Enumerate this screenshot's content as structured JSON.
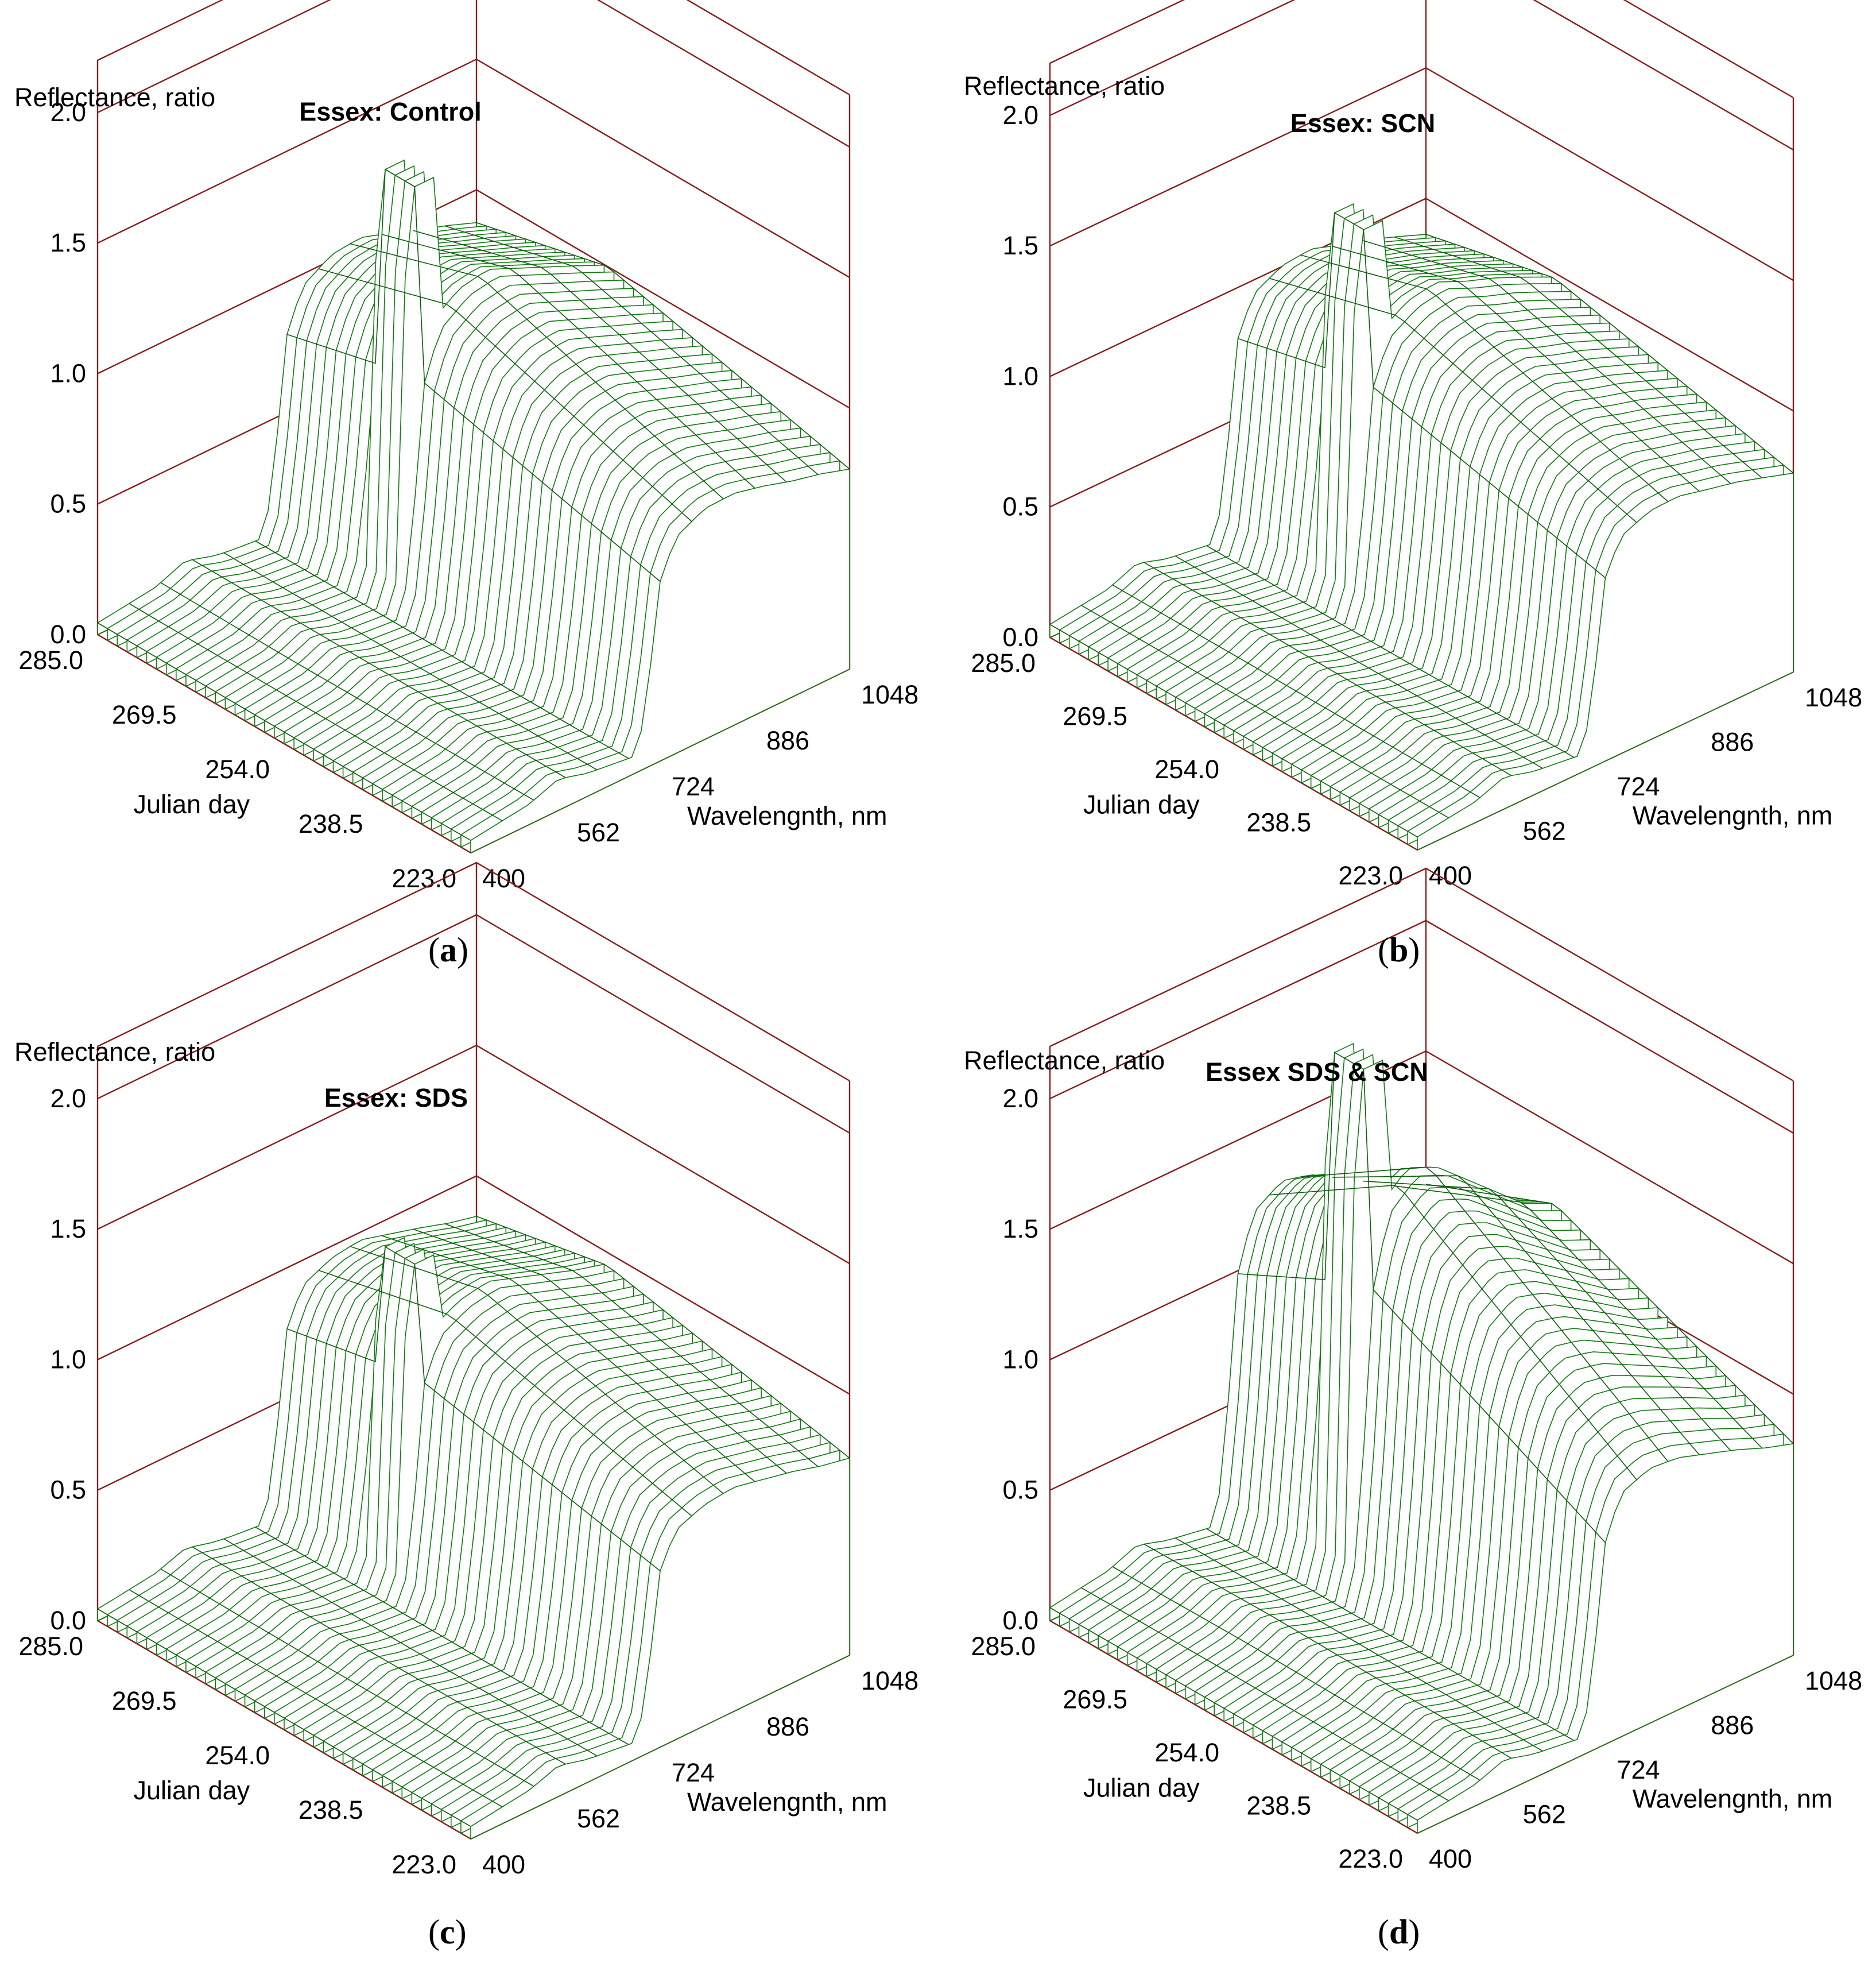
{
  "figure": {
    "panel_captions": [
      {
        "open": "(",
        "letter": "a",
        "close": ")"
      },
      {
        "open": "(",
        "letter": "b",
        "close": ")"
      },
      {
        "open": "(",
        "letter": "c",
        "close": ")"
      },
      {
        "open": "(",
        "letter": "d",
        "close": ")"
      }
    ]
  },
  "colors": {
    "surface": "#117a11",
    "surface_dark": "#0b5e0b",
    "axes": "#8b1a1a",
    "tip": "#d2691e"
  },
  "chart_data": [
    {
      "type": "surface3d",
      "title": "Essex: Control",
      "zlabel": "Reflectance, ratio",
      "ylabel": "Julian day",
      "xlabel": "Wavelengnth, nm",
      "z_ticks": [
        "0.0",
        "0.5",
        "1.0",
        "1.5",
        "2.0"
      ],
      "z_tick_values": [
        0.0,
        0.5,
        1.0,
        1.5,
        2.0
      ],
      "zlim": [
        0,
        2.2
      ],
      "day_ticks": [
        "285.0",
        "269.5",
        "254.0",
        "238.5",
        "223.0"
      ],
      "day_tick_values": [
        285.0,
        269.5,
        254.0,
        238.5,
        223.0
      ],
      "daylim": [
        223.0,
        285.0
      ],
      "wavelength_ticks": [
        "400",
        "562",
        "724",
        "886",
        "1048"
      ],
      "wavelength_tick_values": [
        400,
        562,
        724,
        886,
        1048
      ],
      "wavelengthlim": [
        400,
        1048
      ],
      "surface": {
        "wavelength_profile_nm": [
          400,
          500,
          550,
          600,
          680,
          700,
          720,
          750,
          800,
          850,
          900,
          950,
          1000,
          1048
        ],
        "early_day_reflectance": [
          0.04,
          0.07,
          0.12,
          0.08,
          0.05,
          0.25,
          0.9,
          1.1,
          1.18,
          1.2,
          1.15,
          1.1,
          1.05,
          1.0
        ],
        "late_day_reflectance": [
          0.05,
          0.08,
          0.12,
          0.09,
          0.07,
          0.2,
          0.6,
          0.75,
          0.8,
          0.8,
          0.78,
          0.75,
          0.73,
          0.7
        ],
        "peak_reflectance": 1.65
      }
    },
    {
      "type": "surface3d",
      "title": "Essex: SCN",
      "zlabel": "Reflectance, ratio",
      "ylabel": "Julian day",
      "xlabel": "Wavelengnth, nm",
      "z_ticks": [
        "0.0",
        "0.5",
        "1.0",
        "1.5",
        "2.0"
      ],
      "z_tick_values": [
        0.0,
        0.5,
        1.0,
        1.5,
        2.0
      ],
      "zlim": [
        0,
        2.2
      ],
      "day_ticks": [
        "285.0",
        "269.5",
        "254.0",
        "238.5",
        "223.0"
      ],
      "day_tick_values": [
        285.0,
        269.5,
        254.0,
        238.5,
        223.0
      ],
      "daylim": [
        223.0,
        285.0
      ],
      "wavelength_ticks": [
        "400",
        "562",
        "724",
        "886",
        "1048"
      ],
      "wavelength_tick_values": [
        400,
        562,
        724,
        886,
        1048
      ],
      "wavelengthlim": [
        400,
        1048
      ],
      "surface": {
        "wavelength_profile_nm": [
          400,
          500,
          550,
          600,
          680,
          700,
          720,
          750,
          800,
          850,
          900,
          950,
          1000,
          1048
        ],
        "early_day_reflectance": [
          0.05,
          0.08,
          0.13,
          0.09,
          0.06,
          0.25,
          0.9,
          1.08,
          1.15,
          1.17,
          1.12,
          1.08,
          1.03,
          0.98
        ],
        "late_day_reflectance": [
          0.05,
          0.08,
          0.12,
          0.09,
          0.07,
          0.2,
          0.62,
          0.76,
          0.8,
          0.8,
          0.78,
          0.76,
          0.73,
          0.7
        ],
        "peak_reflectance": 1.5
      }
    },
    {
      "type": "surface3d",
      "title": "Essex: SDS",
      "zlabel": "Reflectance, ratio",
      "ylabel": "Julian day",
      "xlabel": "Wavelengnth, nm",
      "z_ticks": [
        "0.0",
        "0.5",
        "1.0",
        "1.5",
        "2.0"
      ],
      "z_tick_values": [
        0.0,
        0.5,
        1.0,
        1.5,
        2.0
      ],
      "zlim": [
        0,
        2.2
      ],
      "day_ticks": [
        "285.0",
        "269.5",
        "254.0",
        "238.5",
        "223.0"
      ],
      "day_tick_values": [
        285.0,
        269.5,
        254.0,
        238.5,
        223.0
      ],
      "daylim": [
        223.0,
        285.0
      ],
      "wavelength_ticks": [
        "400",
        "562",
        "724",
        "886",
        "1048"
      ],
      "wavelength_tick_values": [
        400,
        562,
        724,
        886,
        1048
      ],
      "wavelengthlim": [
        400,
        1048
      ],
      "surface": {
        "wavelength_profile_nm": [
          400,
          500,
          550,
          600,
          680,
          700,
          720,
          750,
          800,
          850,
          900,
          950,
          1000,
          1048
        ],
        "early_day_reflectance": [
          0.04,
          0.07,
          0.11,
          0.08,
          0.05,
          0.22,
          0.85,
          1.02,
          1.08,
          1.1,
          1.06,
          1.02,
          0.98,
          0.95
        ],
        "late_day_reflectance": [
          0.05,
          0.08,
          0.12,
          0.09,
          0.07,
          0.2,
          0.6,
          0.74,
          0.78,
          0.79,
          0.77,
          0.75,
          0.72,
          0.7
        ],
        "peak_reflectance": 1.3
      }
    },
    {
      "type": "surface3d",
      "title": "Essex SDS & SCN",
      "zlabel": "Reflectance, ratio",
      "ylabel": "Julian day",
      "xlabel": "Wavelengnth, nm",
      "z_ticks": [
        "0.0",
        "0.5",
        "1.0",
        "1.5",
        "2.0"
      ],
      "z_tick_values": [
        0.0,
        0.5,
        1.0,
        1.5,
        2.0
      ],
      "zlim": [
        0,
        2.2
      ],
      "day_ticks": [
        "285.0",
        "269.5",
        "254.0",
        "238.5",
        "223.0"
      ],
      "day_tick_values": [
        285.0,
        269.5,
        254.0,
        238.5,
        223.0
      ],
      "daylim": [
        223.0,
        285.0
      ],
      "wavelength_ticks": [
        "400",
        "562",
        "724",
        "886",
        "1048"
      ],
      "wavelength_tick_values": [
        400,
        562,
        724,
        886,
        1048
      ],
      "wavelengthlim": [
        400,
        1048
      ],
      "surface": {
        "wavelength_profile_nm": [
          400,
          500,
          550,
          600,
          680,
          700,
          720,
          750,
          800,
          850,
          900,
          950,
          1000,
          1048
        ],
        "early_day_reflectance": [
          0.05,
          0.09,
          0.14,
          0.1,
          0.06,
          0.3,
          1.2,
          1.5,
          1.6,
          1.55,
          1.45,
          1.35,
          1.25,
          1.2
        ],
        "late_day_reflectance": [
          0.05,
          0.08,
          0.12,
          0.09,
          0.07,
          0.2,
          0.62,
          0.77,
          0.8,
          0.8,
          0.78,
          0.76,
          0.73,
          0.7
        ],
        "peak_reflectance": 2.05
      }
    }
  ]
}
